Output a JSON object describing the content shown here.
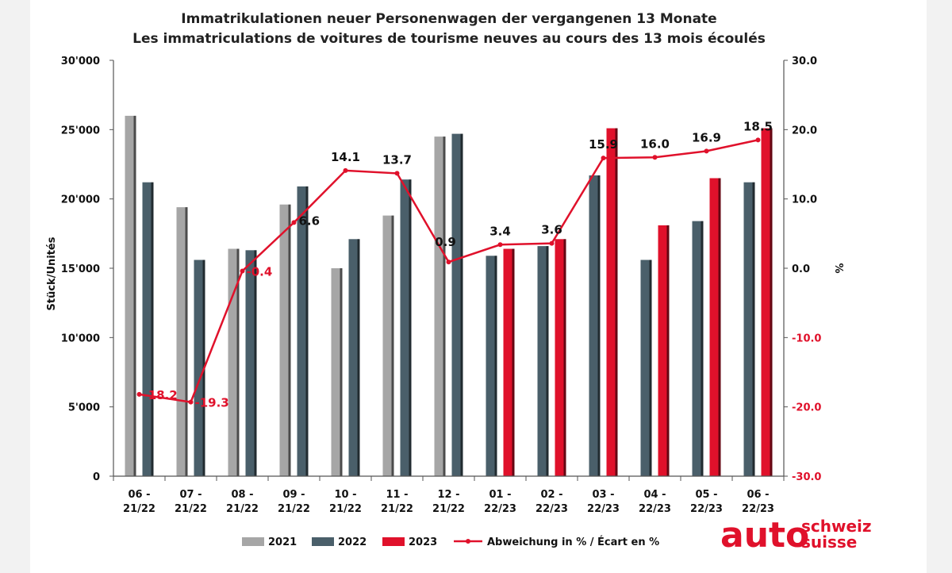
{
  "chart_data": {
    "type": "bar",
    "title": "Immatrikulationen neuer Personenwagen der vergangenen 13 Monate",
    "subtitle": "Les immatriculations de voitures de tourisme neuves au cours des 13 mois écoulés",
    "ylabel": "Stück/Unités",
    "y2label": "%",
    "ylim": [
      0,
      30000
    ],
    "y2lim": [
      -30,
      30
    ],
    "y_ticks": [
      "0",
      "5'000",
      "10'000",
      "15'000",
      "20'000",
      "25'000",
      "30'000"
    ],
    "y2_ticks": [
      "-30.0",
      "-20.0",
      "-10.0",
      "0.0",
      "10.0",
      "20.0",
      "30.0"
    ],
    "categories": [
      [
        "06 -",
        "21/22"
      ],
      [
        "07 -",
        "21/22"
      ],
      [
        "08 -",
        "21/22"
      ],
      [
        "09 -",
        "21/22"
      ],
      [
        "10 -",
        "21/22"
      ],
      [
        "11 -",
        "21/22"
      ],
      [
        "12 -",
        "21/22"
      ],
      [
        "01 -",
        "22/23"
      ],
      [
        "02 -",
        "22/23"
      ],
      [
        "03 -",
        "22/23"
      ],
      [
        "04 -",
        "22/23"
      ],
      [
        "05 -",
        "22/23"
      ],
      [
        "06 -",
        "22/23"
      ]
    ],
    "series": [
      {
        "name": "2021",
        "color": "#a6a6a6",
        "values": [
          26000,
          19400,
          16400,
          19600,
          15000,
          18800,
          24500,
          null,
          null,
          null,
          null,
          null,
          null
        ]
      },
      {
        "name": "2022",
        "color": "#4a5f6a",
        "values": [
          21200,
          15600,
          16300,
          20900,
          17100,
          21400,
          24700,
          15900,
          16600,
          21700,
          15600,
          18400,
          21200
        ]
      },
      {
        "name": "2023",
        "color": "#e0112b",
        "values": [
          null,
          null,
          null,
          null,
          null,
          null,
          null,
          16400,
          17100,
          25100,
          18100,
          21500,
          25100
        ]
      }
    ],
    "line": {
      "name": "Abweichung in % / Écart en %",
      "color": "#e0112b",
      "values": [
        -18.2,
        -19.3,
        -0.4,
        6.6,
        14.1,
        13.7,
        0.9,
        3.4,
        3.6,
        15.9,
        16.0,
        16.9,
        18.5
      ],
      "labels": [
        "-18.2",
        "-19.3",
        "-0.4",
        "6.6",
        "14.1",
        "13.7",
        "0.9",
        "3.4",
        "3.6",
        "15.9",
        "16.0",
        "16.9",
        "18.5"
      ]
    },
    "grid": false,
    "legend_position": "bottom"
  },
  "logo": {
    "main": "auto",
    "line1": "schweiz",
    "line2": "suisse"
  }
}
